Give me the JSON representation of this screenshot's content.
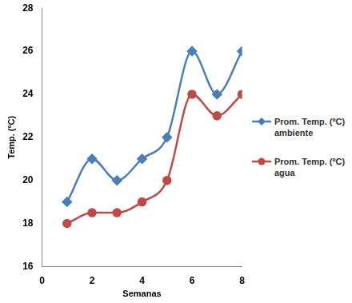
{
  "chart_data": {
    "type": "line",
    "x_label": "Semanas",
    "y_label": "Temp. (ºC)",
    "x": [
      1,
      2,
      3,
      4,
      5,
      6,
      7,
      8
    ],
    "series": [
      {
        "name": "Prom. Temp. (ºC) ambiente",
        "color": "#4a7ebb",
        "marker": "diamond",
        "values": [
          19,
          21,
          20,
          21,
          22,
          26,
          24,
          26
        ]
      },
      {
        "name": "Prom. Temp. (ºC) agua",
        "color": "#be4b48",
        "marker": "circle",
        "values": [
          18,
          18.5,
          18.5,
          19,
          20,
          24,
          23,
          24
        ]
      }
    ],
    "xlim": [
      0,
      8
    ],
    "xticks": [
      0,
      2,
      4,
      6,
      8
    ],
    "ylim": [
      16,
      28
    ],
    "yticks": [
      16,
      18,
      20,
      22,
      24,
      26,
      28
    ],
    "grid": false,
    "legend": "right"
  }
}
